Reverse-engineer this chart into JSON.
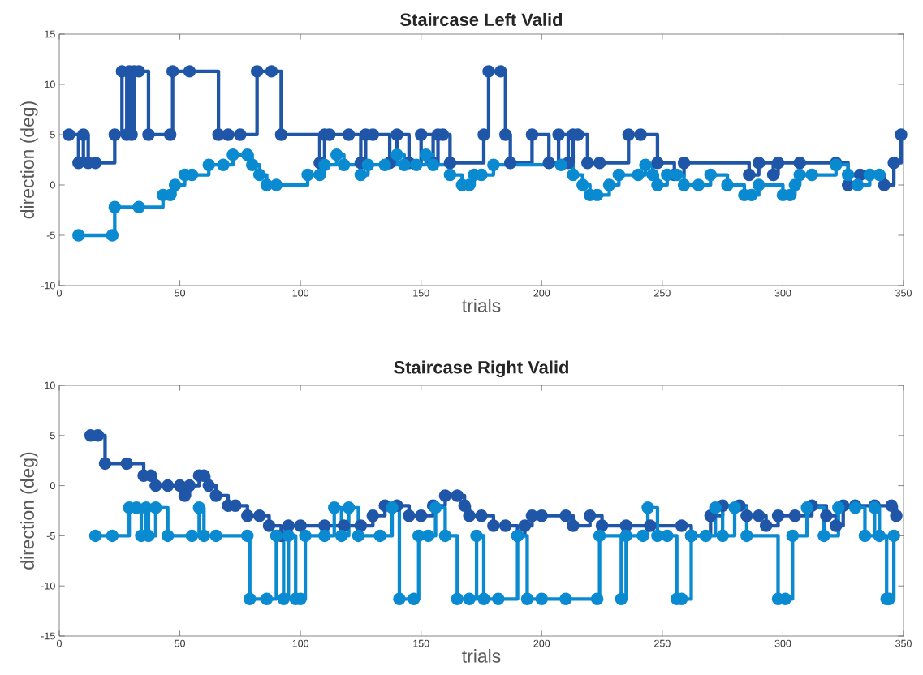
{
  "chart_data": [
    {
      "type": "step",
      "title": "Staircase Left Valid",
      "xlabel": "trials",
      "ylabel": "direction (deg)",
      "xlim": [
        0,
        350
      ],
      "ylim": [
        -10,
        15
      ],
      "xticks": [
        0,
        50,
        100,
        150,
        200,
        250,
        300,
        350
      ],
      "yticks": [
        -10,
        -5,
        0,
        5,
        10,
        15
      ],
      "marker": "circle",
      "grid": false,
      "series": [
        {
          "color": "#1f56a8",
          "x": [
            4,
            8,
            10,
            12,
            15,
            23,
            26,
            28,
            29,
            30,
            31,
            33,
            37,
            46,
            47,
            54,
            66,
            70,
            75,
            82,
            88,
            92,
            108,
            110,
            112,
            120,
            125,
            127,
            130,
            137,
            140,
            145,
            150,
            155,
            157,
            159,
            162,
            176,
            178,
            183,
            185,
            187,
            196,
            203,
            207,
            211,
            213,
            215,
            219,
            224,
            236,
            241,
            248,
            255,
            259,
            286,
            290,
            296,
            298,
            307,
            322,
            327,
            332,
            342,
            346,
            349
          ],
          "values": [
            5,
            2.2,
            5,
            2.2,
            2.2,
            5,
            11.3,
            5,
            11.3,
            5,
            11.3,
            11.3,
            5,
            5,
            11.3,
            11.3,
            5,
            5,
            5,
            11.3,
            11.3,
            5,
            2.2,
            5,
            5,
            5,
            2.2,
            5,
            5,
            2.2,
            5,
            2.2,
            5,
            2.2,
            5,
            5,
            2.2,
            5,
            11.3,
            11.3,
            5,
            2.2,
            5,
            2.2,
            5,
            2.2,
            5,
            5,
            2.2,
            2.2,
            5,
            5,
            2.2,
            1,
            2.2,
            1,
            2.2,
            1,
            2.2,
            2.2,
            2.2,
            0,
            1,
            0,
            2.2,
            5
          ]
        },
        {
          "color": "#0a8ad0",
          "x": [
            8,
            22,
            23,
            33,
            43,
            46,
            48,
            52,
            55,
            62,
            68,
            72,
            78,
            80,
            83,
            86,
            90,
            103,
            108,
            110,
            115,
            118,
            125,
            128,
            135,
            140,
            143,
            148,
            152,
            155,
            162,
            167,
            170,
            172,
            175,
            180,
            208,
            213,
            217,
            220,
            223,
            228,
            232,
            240,
            243,
            246,
            248,
            252,
            256,
            259,
            265,
            270,
            277,
            284,
            287,
            290,
            300,
            303,
            305,
            307,
            312,
            322,
            327,
            331,
            336,
            340
          ],
          "values": [
            -5,
            -5,
            -2.2,
            -2.2,
            -1,
            -1,
            0,
            1,
            1,
            2,
            2,
            3,
            3,
            2,
            1,
            0,
            0,
            1,
            1,
            2,
            3,
            2,
            1,
            2,
            2,
            3,
            2,
            2,
            3,
            2,
            1,
            0,
            0,
            1,
            1,
            2,
            2,
            1,
            0,
            -1,
            -1,
            0,
            1,
            1,
            2,
            1,
            0,
            1,
            1,
            0,
            0,
            1,
            0,
            -1,
            -1,
            0,
            -1,
            -1,
            0,
            1,
            1,
            2,
            1,
            0,
            1,
            1
          ]
        }
      ]
    },
    {
      "type": "step",
      "title": "Staircase Right Valid",
      "xlabel": "trials",
      "ylabel": "direction (deg)",
      "xlim": [
        0,
        350
      ],
      "ylim": [
        -15,
        10
      ],
      "xticks": [
        0,
        50,
        100,
        150,
        200,
        250,
        300,
        350
      ],
      "yticks": [
        -15,
        -10,
        -5,
        0,
        5,
        10
      ],
      "marker": "circle",
      "grid": false,
      "series": [
        {
          "color": "#1f56a8",
          "x": [
            13,
            16,
            19,
            28,
            35,
            38,
            40,
            45,
            50,
            52,
            54,
            58,
            60,
            62,
            65,
            70,
            73,
            78,
            83,
            87,
            92,
            95,
            100,
            110,
            118,
            125,
            130,
            135,
            140,
            145,
            150,
            155,
            160,
            165,
            168,
            170,
            175,
            180,
            185,
            190,
            193,
            196,
            200,
            210,
            213,
            220,
            225,
            235,
            245,
            258,
            262,
            270,
            275,
            282,
            285,
            290,
            293,
            298,
            305,
            312,
            318,
            322,
            325,
            330,
            338,
            345,
            347
          ],
          "values": [
            5,
            5,
            2.2,
            2.2,
            1,
            1,
            0,
            0,
            0,
            -1,
            0,
            1,
            1,
            0,
            -1,
            -2,
            -2,
            -3,
            -3,
            -4,
            -5,
            -4,
            -4,
            -4,
            -4,
            -4,
            -3,
            -2,
            -2,
            -3,
            -3,
            -2,
            -1,
            -1,
            -2,
            -3,
            -3,
            -4,
            -4,
            -5,
            -4,
            -3,
            -3,
            -3,
            -4,
            -3,
            -4,
            -4,
            -4,
            -4,
            -5,
            -3,
            -2,
            -2,
            -3,
            -3,
            -4,
            -3,
            -3,
            -2,
            -3,
            -4,
            -2,
            -2,
            -2,
            -2,
            -3
          ]
        },
        {
          "color": "#0a8ad0",
          "x": [
            15,
            22,
            29,
            32,
            34,
            36,
            37,
            40,
            45,
            55,
            58,
            60,
            65,
            78,
            79,
            86,
            90,
            93,
            95,
            98,
            100,
            102,
            110,
            114,
            117,
            120,
            124,
            133,
            138,
            141,
            147,
            149,
            153,
            156,
            160,
            165,
            170,
            173,
            176,
            182,
            190,
            194,
            200,
            210,
            223,
            224,
            233,
            235,
            242,
            244,
            248,
            252,
            256,
            258,
            262,
            268,
            272,
            275,
            280,
            285,
            298,
            301,
            304,
            310,
            317,
            323,
            330,
            334,
            338,
            340,
            343,
            344,
            346
          ],
          "values": [
            -5,
            -5,
            -2.2,
            -2.2,
            -5,
            -2.2,
            -5,
            -2.2,
            -5,
            -5,
            -2.2,
            -5,
            -5,
            -5,
            -11.3,
            -11.3,
            -5,
            -11.3,
            -5,
            -11.3,
            -11.3,
            -5,
            -5,
            -2.2,
            -5,
            -2.2,
            -5,
            -5,
            -2.2,
            -11.3,
            -11.3,
            -5,
            -5,
            -2.2,
            -5,
            -11.3,
            -11.3,
            -5,
            -11.3,
            -11.3,
            -5,
            -11.3,
            -11.3,
            -11.3,
            -11.3,
            -5,
            -11.3,
            -5,
            -5,
            -2.2,
            -5,
            -5,
            -11.3,
            -11.3,
            -5,
            -5,
            -2.2,
            -5,
            -2.2,
            -5,
            -11.3,
            -11.3,
            -5,
            -2.2,
            -5,
            -2.2,
            -2.2,
            -5,
            -2.2,
            -5,
            -11.3,
            -11.3,
            -5
          ]
        }
      ]
    }
  ]
}
